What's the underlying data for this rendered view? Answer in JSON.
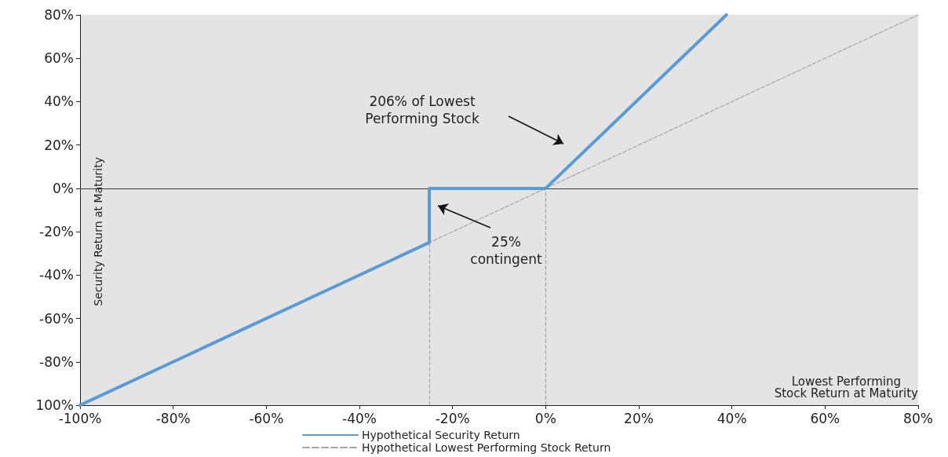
{
  "chart_data": {
    "type": "line",
    "xlabel": "Lowest Performing\nStock Return at Maturity",
    "ylabel": "Security Return at Maturity",
    "series": [
      {
        "name": "Hypothetical Security Return",
        "color": "#5b9bd5",
        "line_style": "solid",
        "x": [
          -100,
          -25,
          -25,
          0,
          38.8
        ],
        "values": [
          -100,
          -25,
          0,
          0,
          80
        ]
      },
      {
        "name": "Hypothetical Lowest Performing Stock Return",
        "color": "#a6a6a6",
        "line_style": "dashed",
        "x": [
          -100,
          80
        ],
        "values": [
          -100,
          80
        ]
      }
    ],
    "xlim": [
      -100,
      80
    ],
    "xticks": [
      {
        "value": -100,
        "label": "-100%"
      },
      {
        "value": -80,
        "label": "-80%"
      },
      {
        "value": -60,
        "label": "-60%"
      },
      {
        "value": -40,
        "label": "-40%"
      },
      {
        "value": -20,
        "label": "-20%"
      },
      {
        "value": 0,
        "label": "0%"
      },
      {
        "value": 20,
        "label": "20%"
      },
      {
        "value": 40,
        "label": "40%"
      },
      {
        "value": 60,
        "label": "60%"
      },
      {
        "value": 80,
        "label": "80%"
      }
    ],
    "ylim": [
      -100,
      80
    ],
    "yticks": [
      {
        "value": -100,
        "label": "100%"
      },
      {
        "value": -80,
        "label": "-80%"
      },
      {
        "value": -60,
        "label": "-60%"
      },
      {
        "value": -40,
        "label": "-40%"
      },
      {
        "value": -20,
        "label": "-20%"
      },
      {
        "value": 0,
        "label": "0%"
      },
      {
        "value": 20,
        "label": "20%"
      },
      {
        "value": 40,
        "label": "40%"
      },
      {
        "value": 60,
        "label": "60%"
      },
      {
        "value": 80,
        "label": "80%"
      }
    ],
    "ref_lines": [
      {
        "axis": "y",
        "value": 0,
        "color": "#404040",
        "line_style": "solid"
      },
      {
        "axis": "x",
        "value": -25,
        "color": "#a6a6a6",
        "line_style": "dashed"
      },
      {
        "axis": "x",
        "value": 0,
        "color": "#a6a6a6",
        "line_style": "dashed"
      }
    ],
    "annotations": [
      "206% of Lowest\nPerforming Stock",
      "25%\ncontingent"
    ],
    "grid": false,
    "legend": "bottom",
    "marker": "none"
  }
}
